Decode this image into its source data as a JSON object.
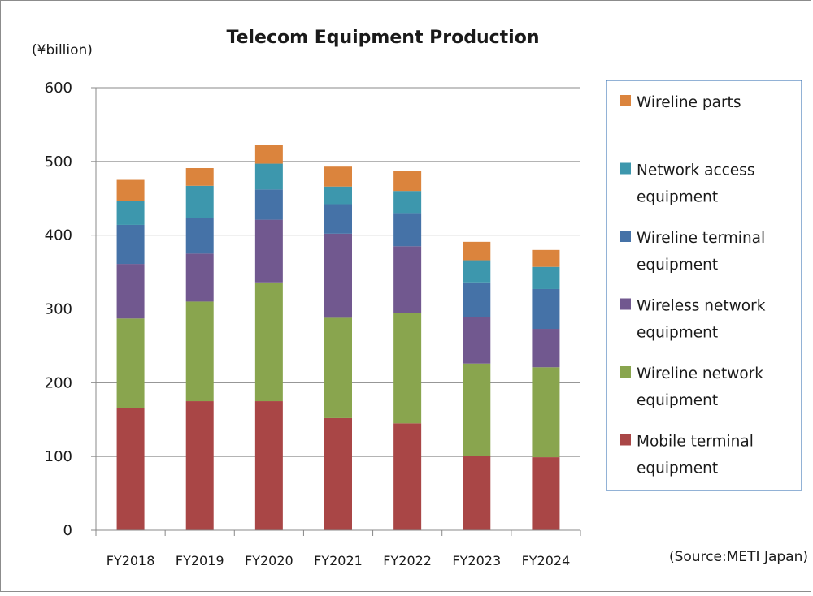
{
  "chart_data": {
    "type": "bar",
    "stacked": true,
    "title": "Telecom Equipment Production",
    "unit_label": "(¥billion)",
    "source": "(Source:METI Japan)",
    "categories": [
      "FY2018",
      "FY2019",
      "FY2020",
      "FY2021",
      "FY2022",
      "FY2023",
      "FY2024"
    ],
    "ylim": [
      0,
      600
    ],
    "yticks": [
      0,
      100,
      200,
      300,
      400,
      500,
      600
    ],
    "grid": true,
    "legend_position": "right",
    "series": [
      {
        "name": "Mobile terminal equipment",
        "legend_lines": [
          "Mobile terminal",
          "equipment"
        ],
        "color": "#a94646",
        "values": [
          166,
          175,
          175,
          152,
          145,
          101,
          99
        ]
      },
      {
        "name": "Wireline network equipment",
        "legend_lines": [
          "Wireline network",
          "equipment"
        ],
        "color": "#89a54e",
        "values": [
          121,
          135,
          161,
          136,
          149,
          125,
          122
        ]
      },
      {
        "name": "Wireless network equipment",
        "legend_lines": [
          "Wireless network",
          "equipment"
        ],
        "color": "#71588f",
        "values": [
          74,
          65,
          85,
          114,
          91,
          63,
          52
        ]
      },
      {
        "name": "Wireline terminal equipment",
        "legend_lines": [
          "Wireline terminal",
          "equipment"
        ],
        "color": "#4572a7",
        "values": [
          53,
          48,
          41,
          40,
          45,
          47,
          54
        ]
      },
      {
        "name": "Network access equipment",
        "legend_lines": [
          "Network access",
          "equipment"
        ],
        "color": "#3d97ad",
        "values": [
          32,
          44,
          35,
          24,
          30,
          30,
          30
        ]
      },
      {
        "name": "Wireline parts",
        "legend_lines": [
          "Wireline parts"
        ],
        "color": "#db843d",
        "values": [
          29,
          24,
          25,
          27,
          27,
          25,
          23
        ]
      }
    ]
  }
}
